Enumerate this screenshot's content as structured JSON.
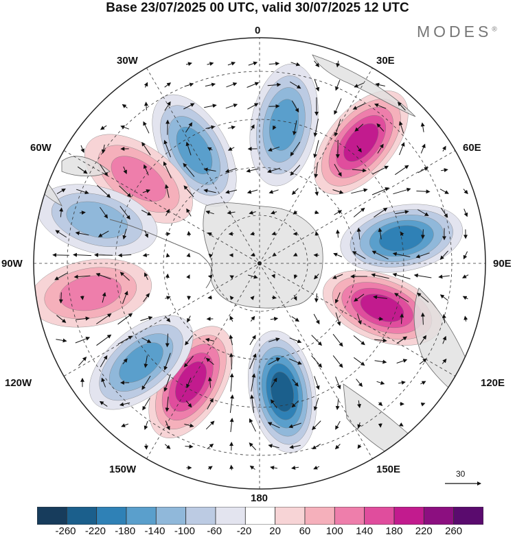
{
  "title": "Base 23/07/2025 00 UTC, valid 30/07/2025 12 UTC",
  "brand": {
    "name": "MODES",
    "mark": "®"
  },
  "map": {
    "projection": "south-polar-stereographic",
    "longitude_labels": {
      "top": "0",
      "top_left": "30W",
      "top_right": "30E",
      "upper_left": "60W",
      "upper_right": "60E",
      "left": "90W",
      "right": "90E",
      "lower_left": "120W",
      "lower_right": "120E",
      "bottom_left": "150W",
      "bottom_right": "150E",
      "bottom": "180"
    },
    "anomaly_centers": [
      {
        "sign": "negative",
        "lon": "30W",
        "value": -150
      },
      {
        "sign": "positive",
        "lon": "55W",
        "value": 110
      },
      {
        "sign": "negative",
        "lon": "10E",
        "value": -170
      },
      {
        "sign": "positive",
        "lon": "40E",
        "value": 220
      },
      {
        "sign": "negative",
        "lon": "80E",
        "value": -190
      },
      {
        "sign": "positive",
        "lon": "110E",
        "value": 190
      },
      {
        "sign": "negative",
        "lon": "170E",
        "value": -260
      },
      {
        "sign": "positive",
        "lon": "150W",
        "value": 200
      },
      {
        "sign": "negative",
        "lon": "130W",
        "value": -170
      },
      {
        "sign": "positive",
        "lon": "100W",
        "value": 110
      },
      {
        "sign": "negative",
        "lon": "75W",
        "value": -120
      }
    ],
    "colors": {
      "land": "#e0e0e0",
      "graticule": "#333333",
      "vector": "#111111",
      "coast": "#666666"
    }
  },
  "vector_reference": {
    "label": "30"
  },
  "colorbar": {
    "ticks": [
      "-260",
      "-220",
      "-180",
      "-140",
      "-100",
      "-60",
      "-20",
      "20",
      "60",
      "100",
      "140",
      "180",
      "220",
      "260"
    ],
    "colors": [
      "#173c5c",
      "#1b5f8c",
      "#2f81b6",
      "#5a9fcc",
      "#90b8da",
      "#bccbe3",
      "#e3e4ef",
      "#ffffff",
      "#f7d4d6",
      "#f5b0bb",
      "#ee7eab",
      "#e04d9d",
      "#c21b8e",
      "#8c0f80",
      "#5a0b6e"
    ]
  }
}
